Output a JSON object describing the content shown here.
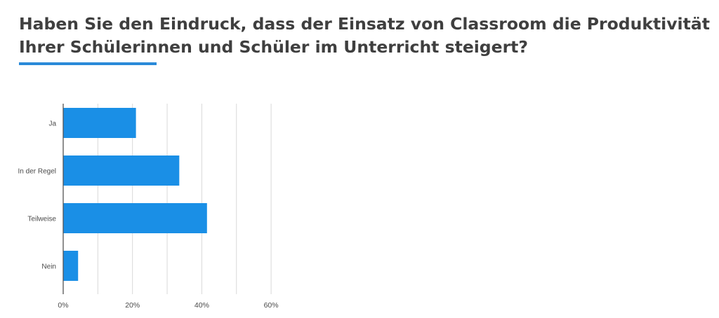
{
  "title_lines": [
    "Haben Sie den Eindruck, dass der Einsatz von Classroom die Produktivität",
    "Ihrer Schülerinnen und Schüler im Unterricht steigert?"
  ],
  "colors": {
    "bar": "#1a8fe6",
    "accent": "#2a8ad9",
    "grid": "#d9d9d9",
    "axis": "#555555"
  },
  "chart_data": {
    "type": "bar",
    "orientation": "horizontal",
    "categories": [
      "Ja",
      "In der Regel",
      "Teilweise",
      "Nein"
    ],
    "values": [
      21,
      33.5,
      41.5,
      4.3
    ],
    "xlim": [
      0,
      60
    ],
    "x_ticks": [
      "0%",
      "20%",
      "40%",
      "60%"
    ],
    "grid": true,
    "legend": "none"
  }
}
